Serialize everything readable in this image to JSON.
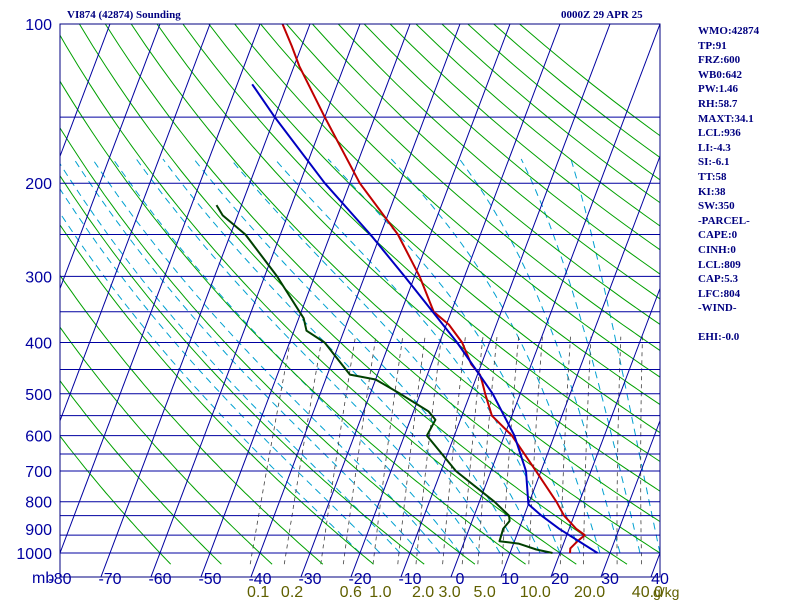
{
  "header": {
    "title": "VI874 (42874) Sounding",
    "timestamp": "0000Z 29 APR 25"
  },
  "indices": [
    "WMO:42874",
    "TP:91",
    "FRZ:600",
    "WB0:642",
    "PW:1.46",
    "RH:58.7",
    "MAXT:34.1",
    "LCL:936",
    "LI:-4.3",
    "SI:-6.1",
    "TT:58",
    "KI:38",
    "SW:350",
    "-PARCEL-",
    "CAPE:0",
    "CINH:0",
    "LCL:809",
    "CAP:5.3",
    "LFC:804",
    "-WIND-",
    "",
    "EHI:-0.0"
  ],
  "colors": {
    "frame": "#000080",
    "isobar": "#0000a0",
    "isotherm": "#0000a0",
    "dry_adiabat": "#00a000",
    "moist_adiabat": "#00a0d0",
    "mixing_ratio": "#404040",
    "temperature": "#c00000",
    "dewpoint": "#004000",
    "parcel": "#0000c0",
    "temp_tick_labels": "#0000a0",
    "mixing_tick_labels": "#606000"
  },
  "chart_data": {
    "type": "line",
    "diagram": "skew-T log-P",
    "xlabel": "",
    "ylabel": "mb",
    "xlim": [
      -80,
      40
    ],
    "ylim": [
      1000,
      100
    ],
    "y_scale": "log",
    "grid": true,
    "pressure_levels": [
      1000,
      925,
      850,
      800,
      700,
      650,
      600,
      550,
      500,
      450,
      400,
      350,
      300,
      250,
      200,
      150,
      100
    ],
    "pressure_tick_labels": [
      "100",
      "200",
      "300",
      "400",
      "500",
      "600",
      "700",
      "800",
      "900",
      "1000"
    ],
    "temperature_ticks": [
      -80,
      -70,
      -60,
      -50,
      -40,
      -30,
      -20,
      -10,
      0,
      10,
      20,
      30,
      40
    ],
    "temperature_tick_labels": [
      "-80",
      "-70",
      "-60",
      "-50",
      "-40",
      "-30",
      "-20",
      "-10",
      "0",
      "10",
      "20",
      "30",
      "40"
    ],
    "axis_label": "mb",
    "mixing_ratio_labels": [
      "0.1",
      "0.2",
      "0.6",
      "1.0",
      "2.0",
      "3.0",
      "5.0",
      "10.0",
      "20.0",
      "40.0"
    ],
    "mixing_ratio_unit": "g/kg",
    "series": [
      {
        "key": "temperature",
        "points": [
          {
            "p": 1000,
            "t": 22.0
          },
          {
            "p": 980,
            "t": 21.7
          },
          {
            "p": 950,
            "t": 22.6
          },
          {
            "p": 925,
            "t": 23.6
          },
          {
            "p": 900,
            "t": 21.4
          },
          {
            "p": 850,
            "t": 18.0
          },
          {
            "p": 800,
            "t": 15.4
          },
          {
            "p": 700,
            "t": 9.0
          },
          {
            "p": 600,
            "t": 1.5
          },
          {
            "p": 550,
            "t": -4.0
          },
          {
            "p": 500,
            "t": -7.0
          },
          {
            "p": 475,
            "t": -8.5
          },
          {
            "p": 460,
            "t": -9.5
          },
          {
            "p": 440,
            "t": -12.0
          },
          {
            "p": 400,
            "t": -15.5
          },
          {
            "p": 370,
            "t": -19.5
          },
          {
            "p": 350,
            "t": -23.5
          },
          {
            "p": 300,
            "t": -29.0
          },
          {
            "p": 250,
            "t": -36.5
          },
          {
            "p": 200,
            "t": -48.0
          },
          {
            "p": 150,
            "t": -60.0
          },
          {
            "p": 120,
            "t": -69.0
          },
          {
            "p": 110,
            "t": -72.0
          },
          {
            "p": 100,
            "t": -75.5
          }
        ]
      },
      {
        "key": "dewpoint",
        "points": [
          {
            "p": 1000,
            "t": 18.5
          },
          {
            "p": 985,
            "t": 15.0
          },
          {
            "p": 960,
            "t": 11.0
          },
          {
            "p": 950,
            "t": 7.0
          },
          {
            "p": 900,
            "t": 6.8
          },
          {
            "p": 870,
            "t": 7.5
          },
          {
            "p": 850,
            "t": 7.0
          },
          {
            "p": 800,
            "t": 3.0
          },
          {
            "p": 700,
            "t": -7.0
          },
          {
            "p": 600,
            "t": -15.5
          },
          {
            "p": 560,
            "t": -15.0
          },
          {
            "p": 540,
            "t": -17.0
          },
          {
            "p": 500,
            "t": -24.0
          },
          {
            "p": 470,
            "t": -30.0
          },
          {
            "p": 460,
            "t": -35.5
          },
          {
            "p": 400,
            "t": -43.0
          },
          {
            "p": 380,
            "t": -47.5
          },
          {
            "p": 360,
            "t": -49.0
          },
          {
            "p": 300,
            "t": -57.5
          },
          {
            "p": 250,
            "t": -67.0
          },
          {
            "p": 230,
            "t": -73.0
          },
          {
            "p": 220,
            "t": -75.0
          }
        ]
      },
      {
        "key": "parcel",
        "points": [
          {
            "p": 1000,
            "t": 27.5
          },
          {
            "p": 900,
            "t": 18.0
          },
          {
            "p": 850,
            "t": 13.5
          },
          {
            "p": 809,
            "t": 10.0
          },
          {
            "p": 700,
            "t": 7.0
          },
          {
            "p": 600,
            "t": 2.0
          },
          {
            "p": 500,
            "t": -5.5
          },
          {
            "p": 400,
            "t": -16.5
          },
          {
            "p": 300,
            "t": -32.0
          },
          {
            "p": 250,
            "t": -42.0
          },
          {
            "p": 200,
            "t": -55.0
          },
          {
            "p": 150,
            "t": -70.0
          },
          {
            "p": 130,
            "t": -77.0
          }
        ]
      }
    ]
  }
}
